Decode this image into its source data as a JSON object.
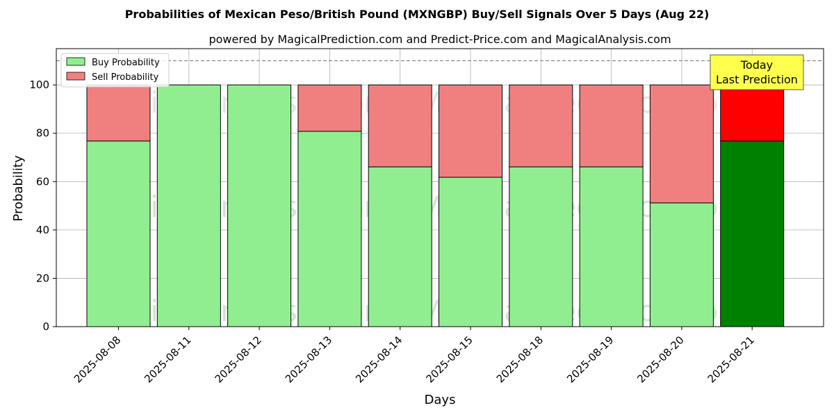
{
  "chart_data": {
    "type": "bar",
    "stacked": true,
    "title": "Probabilities of Mexican Peso/British Pound (MXNGBP) Buy/Sell Signals Over 5 Days (Aug 22)",
    "subtitle": "powered by MagicalPrediction.com and Predict-Price.com and MagicalAnalysis.com",
    "xlabel": "Days",
    "ylabel": "Probability",
    "ylim": [
      0,
      115
    ],
    "yticks": [
      0,
      20,
      40,
      60,
      80,
      100
    ],
    "reference_line": 110,
    "grid": true,
    "legend_position": "top-left",
    "categories": [
      "2025-08-08",
      "2025-08-11",
      "2025-08-12",
      "2025-08-13",
      "2025-08-14",
      "2025-08-15",
      "2025-08-18",
      "2025-08-19",
      "2025-08-20",
      "2025-08-21"
    ],
    "series": [
      {
        "name": "Buy Probability",
        "values": [
          76.8,
          100,
          100,
          80.8,
          66.1,
          61.8,
          66.1,
          66.1,
          51.2,
          76.8
        ],
        "color": "#90ee90",
        "highlight_color": "#008000"
      },
      {
        "name": "Sell Probability",
        "values": [
          23.2,
          0,
          0,
          19.2,
          33.9,
          38.2,
          33.9,
          33.9,
          48.8,
          23.2
        ],
        "color": "#f08080",
        "highlight_color": "#ff0000"
      }
    ],
    "highlight_index": 9,
    "annotation": {
      "line1": "Today",
      "line2": "Last Prediction",
      "color": "#ffff4d"
    },
    "watermarks": [
      "MagicalAnalysis.com",
      "MagicalPrediction.com"
    ]
  }
}
